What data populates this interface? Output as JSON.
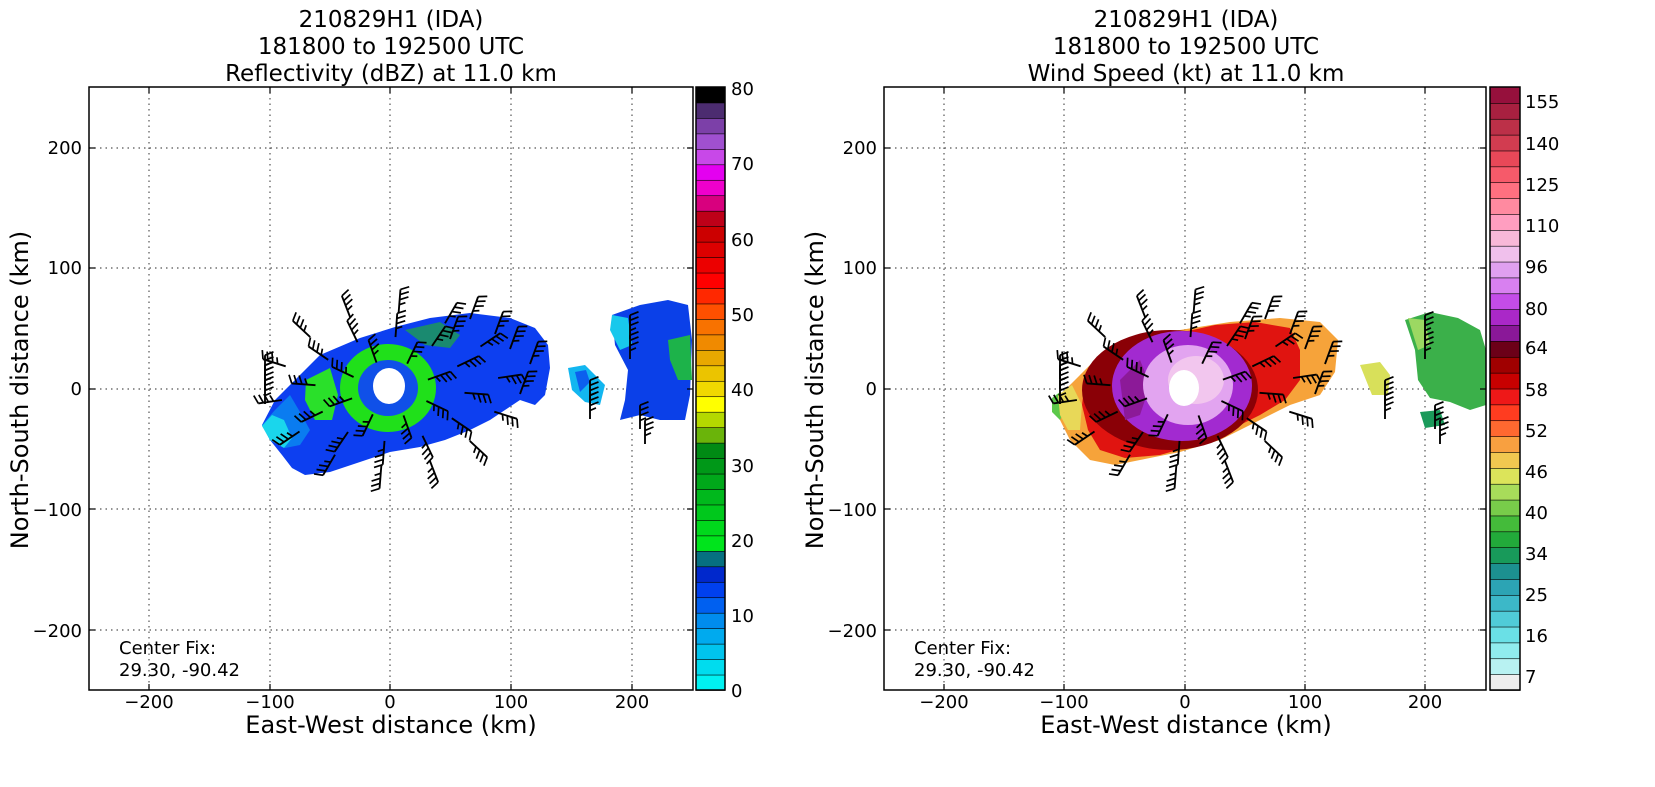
{
  "panels": [
    {
      "title_lines": [
        "210829H1 (IDA)",
        "181800 to 192500 UTC",
        "Reflectivity (dBZ) at 11.0 km"
      ],
      "xlabel": "East-West distance (km)",
      "ylabel": "North-South distance (km)",
      "x_ticks": [
        "−200",
        "−100",
        "0",
        "100",
        "200"
      ],
      "y_ticks": [
        "200",
        "100",
        "0",
        "−100",
        "−200"
      ],
      "annotation_lines": [
        "Center Fix:",
        "29.30, -90.42"
      ],
      "colorbar_labels": [
        "80",
        "70",
        "60",
        "50",
        "40",
        "30",
        "20",
        "10",
        "0"
      ],
      "colorbar_colors": [
        "#00f2f2",
        "#00dcee",
        "#00c4ee",
        "#00aaee",
        "#008cee",
        "#0060f0",
        "#0040ee",
        "#0028cc",
        "#067080",
        "#00e41c",
        "#00d81c",
        "#00c81c",
        "#00b81c",
        "#00a81a",
        "#009818",
        "#008a14",
        "#6ab40a",
        "#b4d800",
        "#ffff00",
        "#f0d800",
        "#ebc400",
        "#e8a800",
        "#f08a00",
        "#f87200",
        "#ff5000",
        "#ff2800",
        "#ff0000",
        "#ec0000",
        "#dc0000",
        "#cc0000",
        "#be0018",
        "#d8007e",
        "#ef00cc",
        "#e400f0",
        "#c848e8",
        "#a050d0",
        "#7c40a8",
        "#4c2c70",
        "#000000"
      ],
      "chart_data": {
        "type": "heatmap",
        "variable": "Reflectivity (dBZ) at 11.0 km",
        "xlim": [
          -250,
          250
        ],
        "ylim": [
          -250,
          250
        ],
        "grid": true,
        "colorbar_range": [
          0,
          80
        ],
        "echo_regions": [
          {
            "shape": "spiral-band",
            "center_x": 10,
            "center_y": 0,
            "extent_x": [
              -105,
              130
            ],
            "extent_y": [
              -68,
              65
            ],
            "value_dbz": 10
          },
          {
            "shape": "inner-eyewall",
            "center_x": 0,
            "center_y": 2,
            "radius_km": 30,
            "value_dbz": 22
          },
          {
            "shape": "outer-band",
            "center_x": 215,
            "center_y": 5,
            "extent_x": [
              185,
              250
            ],
            "extent_y": [
              -30,
              65
            ],
            "value_dbz": 8
          },
          {
            "shape": "outer-band",
            "center_x": 160,
            "center_y": -5,
            "extent_x": [
              145,
              180
            ],
            "extent_y": [
              -25,
              20
            ],
            "value_dbz": 5
          }
        ],
        "eye": {
          "x": 0,
          "y": 2,
          "radius_km": 12
        }
      }
    },
    {
      "title_lines": [
        "210829H1 (IDA)",
        "181800 to 192500 UTC",
        "Wind Speed (kt) at 11.0 km"
      ],
      "xlabel": "East-West distance (km)",
      "ylabel": "North-South distance (km)",
      "x_ticks": [
        "−200",
        "−100",
        "0",
        "100",
        "200"
      ],
      "y_ticks": [
        "200",
        "100",
        "0",
        "−100",
        "−200"
      ],
      "annotation_lines": [
        "Center Fix:",
        "29.30, -90.42"
      ],
      "colorbar_labels": [
        "155",
        "140",
        "125",
        "110",
        "96",
        "80",
        "64",
        "58",
        "52",
        "46",
        "40",
        "34",
        "25",
        "16",
        "7"
      ],
      "colorbar_colors": [
        "#eeeeee",
        "#b8f2f2",
        "#90ecee",
        "#6ae0e6",
        "#50ccd8",
        "#3cb8c8",
        "#2ca4b4",
        "#1c9090",
        "#189a5a",
        "#22aa3a",
        "#44bb3a",
        "#78cc4a",
        "#a8dc5a",
        "#dce45a",
        "#f0c850",
        "#f8a040",
        "#ff6830",
        "#ff3c20",
        "#ee1818",
        "#c80000",
        "#a00000",
        "#6c0018",
        "#8a1898",
        "#aa28c8",
        "#c44ce8",
        "#d880f0",
        "#e0a0f0",
        "#f0c0ec",
        "#f8b8d8",
        "#ff9ec0",
        "#ff8aa0",
        "#ff7080",
        "#f65a6a",
        "#e84858",
        "#d23c50",
        "#bc3048",
        "#a82040",
        "#96103c"
      ],
      "chart_data": {
        "type": "heatmap",
        "variable": "Wind Speed (kt) at 11.0 km",
        "xlim": [
          -250,
          250
        ],
        "ylim": [
          -250,
          250
        ],
        "grid": true,
        "colorbar_range": [
          7,
          155
        ],
        "wind_regions": [
          {
            "shape": "outer-ring",
            "center_x": -10,
            "center_y": 0,
            "extent_x": [
              -110,
              125
            ],
            "extent_y": [
              -62,
              58
            ],
            "value_kt": 50
          },
          {
            "shape": "dark-red-ring",
            "center_x": -5,
            "center_y": 0,
            "radius_km": 55,
            "value_kt": 60
          },
          {
            "shape": "purple-core",
            "center_x": 0,
            "center_y": 0,
            "radius_km": 45,
            "value_kt": 75
          },
          {
            "shape": "pink-eyewall",
            "center_x": 5,
            "center_y": 2,
            "radius_km": 22,
            "value_kt": 95
          },
          {
            "shape": "outer-band",
            "center_x": 220,
            "center_y": 5,
            "extent_x": [
              185,
              250
            ],
            "extent_y": [
              -40,
              65
            ],
            "value_kt": 38
          },
          {
            "shape": "outer-band",
            "center_x": 160,
            "center_y": 0,
            "extent_x": [
              145,
              175
            ],
            "extent_y": [
              -20,
              20
            ],
            "value_kt": 44
          }
        ],
        "eye": {
          "x": 0,
          "y": 2,
          "radius_km": 12
        }
      }
    }
  ],
  "colors": {
    "grid": "#555555",
    "barb": "#000000",
    "frame": "#000000"
  }
}
